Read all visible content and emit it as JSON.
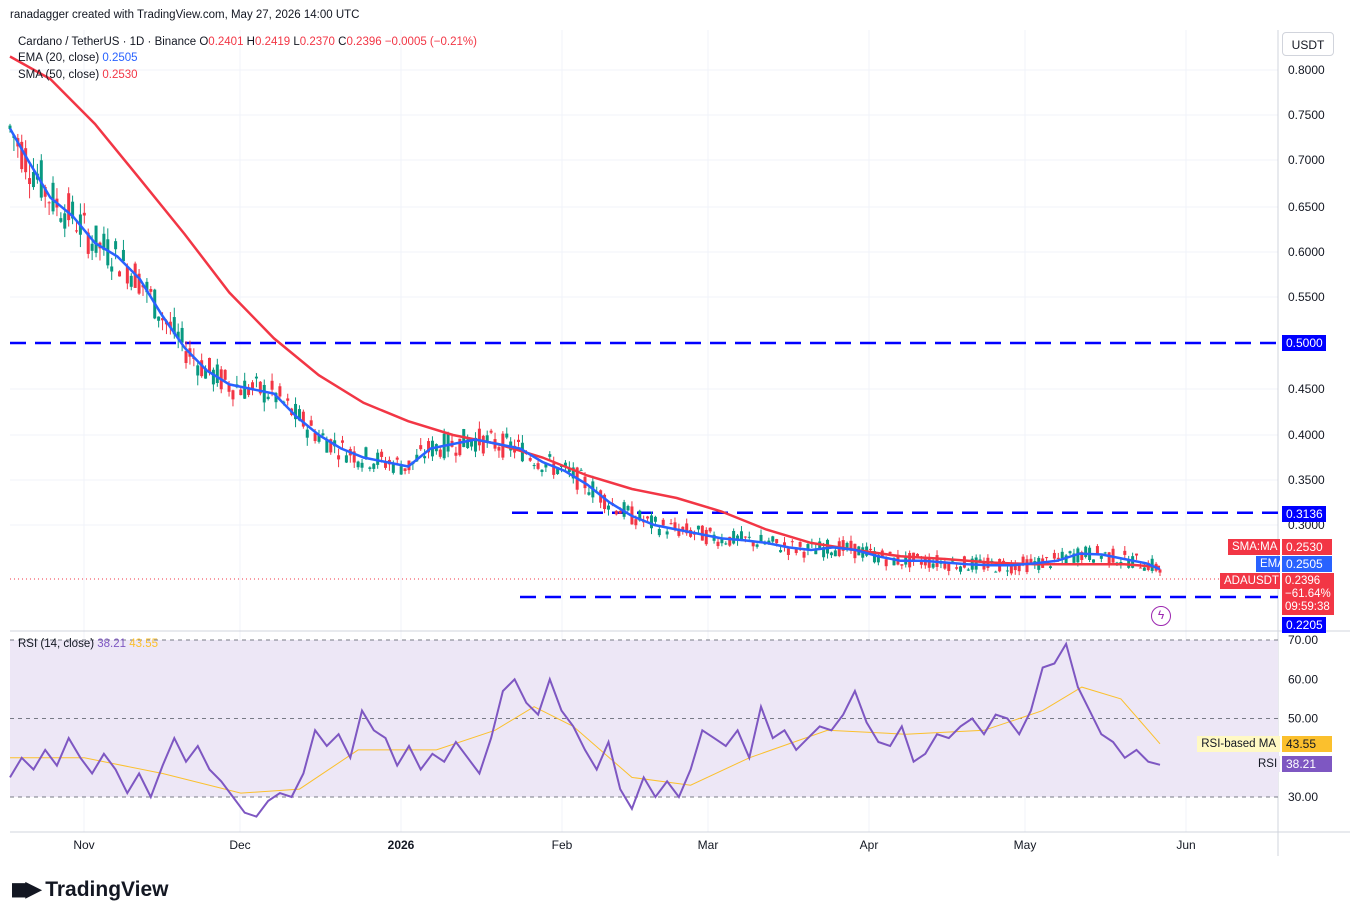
{
  "header": {
    "attribution": "ranadagger created with TradingView.com, May 27, 2026 14:00 UTC",
    "symbol": "Cardano / TetherUS · 1D · Binance",
    "ohlc": [
      {
        "k": "O",
        "v": "0.2401"
      },
      {
        "k": "H",
        "v": "0.2419"
      },
      {
        "k": "L",
        "v": "0.2370"
      },
      {
        "k": "C",
        "v": "0.2396"
      }
    ],
    "change": "−0.0005 (−0.21%)",
    "ema_label": "EMA (20, close)",
    "ema_value": "0.2505",
    "sma_label": "SMA (50, close)",
    "sma_value": "0.2530",
    "rsi_label": "RSI (14, close)",
    "rsi_value": "38.21",
    "rsi_ma_value": "43.55"
  },
  "currency_button": "USDT",
  "price_axis_labels": [
    "0.8000",
    "0.7500",
    "0.7000",
    "0.6500",
    "0.6000",
    "0.5500",
    "0.4500",
    "0.4000",
    "0.3500",
    "0.3000"
  ],
  "price_tags": {
    "level_high": "0.5000",
    "level_mid": "0.3136",
    "level_low": "0.2205",
    "sma_label": "SMA:MA",
    "sma_value": "0.2530",
    "ema_label": "EMA",
    "ema_value": "0.2505",
    "symbol_label": "ADAUSDT",
    "price": "0.2396",
    "change": "−61.64%",
    "countdown": "09:59:38"
  },
  "rsi_axis_labels": [
    "70.00",
    "60.00",
    "50.00",
    "30.00"
  ],
  "rsi_tags": {
    "ma_label": "RSI-based MA",
    "ma_value": "43.55",
    "rsi_label": "RSI",
    "rsi_value": "38.21"
  },
  "time_axis_labels": [
    "Nov",
    "Dec",
    "2026",
    "Feb",
    "Mar",
    "Apr",
    "May",
    "Jun"
  ],
  "footer_logo": "TradingView",
  "colors": {
    "up": "#089981",
    "down": "#f23645",
    "ema": "#2962ff",
    "sma": "#f23645",
    "rsi": "#7e57c2",
    "rsi_ma": "#fbc02d",
    "level": "#0000ff",
    "rsi_band": "#ede7f6"
  },
  "chart_data": [
    {
      "type": "candlestick",
      "title": "Cardano / TetherUS · 1D · Binance",
      "ylabel": "USDT",
      "ylim": [
        0.2,
        0.83
      ],
      "x_range": [
        "2025-10-14",
        "2026-06-20"
      ],
      "x_ticks": [
        "Nov",
        "Dec",
        "2026",
        "Feb",
        "Mar",
        "Apr",
        "May",
        "Jun"
      ],
      "horizontal_levels": [
        0.5,
        0.3136,
        0.2205
      ],
      "ema20": [
        [
          1,
          0.735
        ],
        [
          5,
          0.7
        ],
        [
          10,
          0.66
        ],
        [
          15,
          0.64
        ],
        [
          20,
          0.61
        ],
        [
          25,
          0.595
        ],
        [
          30,
          0.57
        ],
        [
          35,
          0.53
        ],
        [
          40,
          0.495
        ],
        [
          45,
          0.47
        ],
        [
          50,
          0.455
        ],
        [
          55,
          0.45
        ],
        [
          60,
          0.445
        ],
        [
          65,
          0.42
        ],
        [
          70,
          0.4
        ],
        [
          75,
          0.385
        ],
        [
          80,
          0.375
        ],
        [
          85,
          0.37
        ],
        [
          90,
          0.365
        ],
        [
          95,
          0.385
        ],
        [
          100,
          0.39
        ],
        [
          105,
          0.395
        ],
        [
          110,
          0.39
        ],
        [
          115,
          0.385
        ],
        [
          120,
          0.37
        ],
        [
          125,
          0.36
        ],
        [
          130,
          0.345
        ],
        [
          135,
          0.325
        ],
        [
          140,
          0.31
        ],
        [
          145,
          0.3
        ],
        [
          150,
          0.295
        ],
        [
          155,
          0.29
        ],
        [
          160,
          0.285
        ],
        [
          165,
          0.283
        ],
        [
          170,
          0.28
        ],
        [
          175,
          0.275
        ],
        [
          180,
          0.272
        ],
        [
          185,
          0.275
        ],
        [
          190,
          0.272
        ],
        [
          195,
          0.265
        ],
        [
          200,
          0.26
        ],
        [
          205,
          0.26
        ],
        [
          210,
          0.258
        ],
        [
          215,
          0.256
        ],
        [
          220,
          0.255
        ],
        [
          225,
          0.255
        ],
        [
          230,
          0.257
        ],
        [
          235,
          0.26
        ],
        [
          240,
          0.268
        ],
        [
          245,
          0.267
        ],
        [
          250,
          0.262
        ],
        [
          255,
          0.257
        ],
        [
          258,
          0.2505
        ]
      ],
      "sma50": [
        [
          1,
          0.815
        ],
        [
          10,
          0.79
        ],
        [
          20,
          0.74
        ],
        [
          30,
          0.68
        ],
        [
          40,
          0.62
        ],
        [
          50,
          0.555
        ],
        [
          60,
          0.505
        ],
        [
          70,
          0.465
        ],
        [
          80,
          0.435
        ],
        [
          90,
          0.415
        ],
        [
          100,
          0.4
        ],
        [
          110,
          0.39
        ],
        [
          120,
          0.375
        ],
        [
          130,
          0.355
        ],
        [
          140,
          0.34
        ],
        [
          150,
          0.33
        ],
        [
          160,
          0.315
        ],
        [
          170,
          0.295
        ],
        [
          180,
          0.28
        ],
        [
          190,
          0.272
        ],
        [
          200,
          0.265
        ],
        [
          210,
          0.262
        ],
        [
          220,
          0.258
        ],
        [
          230,
          0.256
        ],
        [
          240,
          0.256
        ],
        [
          250,
          0.256
        ],
        [
          258,
          0.253
        ]
      ],
      "last_close": 0.2396
    },
    {
      "type": "line",
      "title": "RSI (14, close)",
      "ylim": [
        20,
        73
      ],
      "y_ticks": [
        30,
        50,
        60,
        70
      ],
      "band": [
        30,
        70
      ],
      "series": [
        {
          "name": "RSI",
          "values": [
            [
              1,
              35
            ],
            [
              4,
              40
            ],
            [
              7,
              37
            ],
            [
              10,
              42
            ],
            [
              13,
              38
            ],
            [
              16,
              45
            ],
            [
              19,
              40
            ],
            [
              22,
              36
            ],
            [
              25,
              41
            ],
            [
              28,
              37
            ],
            [
              31,
              31
            ],
            [
              34,
              36
            ],
            [
              37,
              30
            ],
            [
              40,
              38
            ],
            [
              43,
              45
            ],
            [
              46,
              39
            ],
            [
              49,
              43
            ],
            [
              52,
              37
            ],
            [
              55,
              34
            ],
            [
              58,
              30
            ],
            [
              61,
              26
            ],
            [
              64,
              25
            ],
            [
              67,
              29
            ],
            [
              70,
              31
            ],
            [
              73,
              30
            ],
            [
              76,
              36
            ],
            [
              79,
              47
            ],
            [
              82,
              43
            ],
            [
              85,
              46
            ],
            [
              88,
              40
            ],
            [
              91,
              52
            ],
            [
              94,
              47
            ],
            [
              97,
              45
            ],
            [
              100,
              38
            ],
            [
              103,
              43
            ],
            [
              106,
              37
            ],
            [
              109,
              41
            ],
            [
              112,
              39
            ],
            [
              115,
              44
            ],
            [
              118,
              40
            ],
            [
              121,
              36
            ],
            [
              124,
              45
            ],
            [
              127,
              57
            ],
            [
              130,
              60
            ],
            [
              133,
              54
            ],
            [
              136,
              51
            ],
            [
              139,
              60
            ],
            [
              142,
              52
            ],
            [
              145,
              48
            ],
            [
              148,
              42
            ],
            [
              151,
              37
            ],
            [
              154,
              44
            ],
            [
              157,
              32
            ],
            [
              160,
              27
            ],
            [
              163,
              35
            ],
            [
              166,
              30
            ],
            [
              169,
              34
            ],
            [
              172,
              30
            ],
            [
              175,
              37
            ],
            [
              178,
              47
            ],
            [
              181,
              45
            ],
            [
              184,
              43
            ],
            [
              187,
              47
            ],
            [
              190,
              40
            ],
            [
              193,
              53
            ],
            [
              196,
              45
            ],
            [
              199,
              47
            ],
            [
              202,
              42
            ],
            [
              205,
              45
            ],
            [
              208,
              48
            ],
            [
              211,
              47
            ],
            [
              214,
              51
            ],
            [
              217,
              57
            ],
            [
              220,
              49
            ],
            [
              223,
              44
            ],
            [
              226,
              43
            ],
            [
              229,
              48
            ],
            [
              232,
              39
            ],
            [
              235,
              41
            ],
            [
              238,
              46
            ],
            [
              241,
              45
            ],
            [
              244,
              48
            ],
            [
              247,
              50
            ],
            [
              250,
              46
            ],
            [
              253,
              51
            ],
            [
              256,
              50
            ],
            [
              259,
              46
            ],
            [
              262,
              52
            ],
            [
              265,
              63
            ],
            [
              268,
              64
            ],
            [
              271,
              69
            ],
            [
              274,
              58
            ],
            [
              277,
              52
            ],
            [
              280,
              46
            ],
            [
              283,
              44
            ],
            [
              286,
              40
            ],
            [
              289,
              42
            ],
            [
              292,
              39
            ],
            [
              295,
              38.21
            ]
          ]
        },
        {
          "name": "RSI-based MA",
          "values": [
            [
              1,
              40
            ],
            [
              20,
              40
            ],
            [
              40,
              36
            ],
            [
              60,
              31
            ],
            [
              75,
              32
            ],
            [
              90,
              42
            ],
            [
              110,
              42
            ],
            [
              125,
              47
            ],
            [
              135,
              53
            ],
            [
              145,
              48
            ],
            [
              160,
              35
            ],
            [
              175,
              33
            ],
            [
              190,
              40
            ],
            [
              210,
              47
            ],
            [
              230,
              46
            ],
            [
              250,
              47
            ],
            [
              265,
              52
            ],
            [
              275,
              58
            ],
            [
              285,
              55
            ],
            [
              295,
              43.55
            ]
          ]
        }
      ]
    }
  ]
}
